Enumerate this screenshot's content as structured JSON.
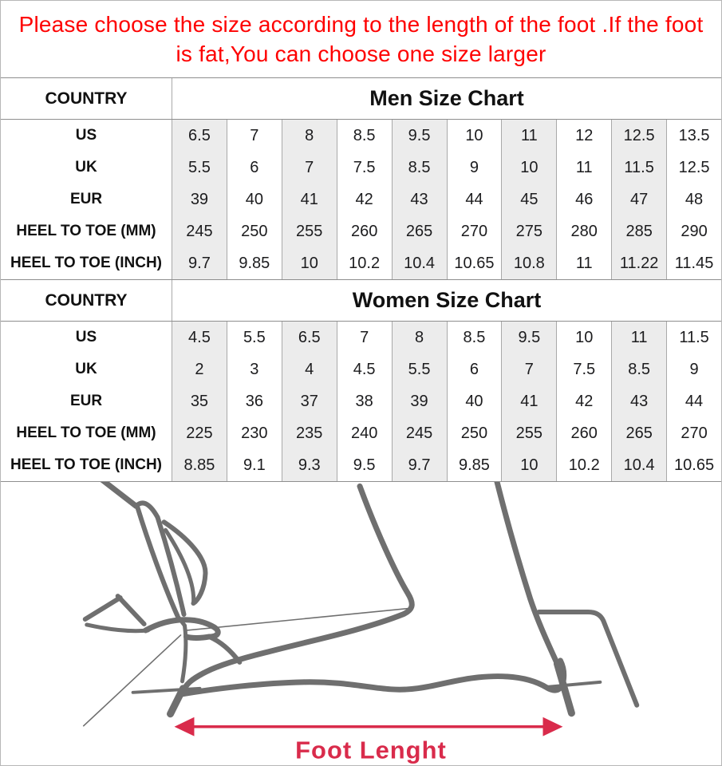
{
  "notice": {
    "line1": "Please choose the size according to the length of the foot .If the foot",
    "line2": "is fat,You can choose one size larger"
  },
  "tables": [
    {
      "country_label": "COUNTRY",
      "title": "Men Size Chart",
      "rows": [
        {
          "label": "US",
          "values": [
            "6.5",
            "7",
            "8",
            "8.5",
            "9.5",
            "10",
            "11",
            "12",
            "12.5",
            "13.5"
          ]
        },
        {
          "label": "UK",
          "values": [
            "5.5",
            "6",
            "7",
            "7.5",
            "8.5",
            "9",
            "10",
            "11",
            "11.5",
            "12.5"
          ]
        },
        {
          "label": "EUR",
          "values": [
            "39",
            "40",
            "41",
            "42",
            "43",
            "44",
            "45",
            "46",
            "47",
            "48"
          ]
        },
        {
          "label": "HEEL TO TOE (MM)",
          "values": [
            "245",
            "250",
            "255",
            "260",
            "265",
            "270",
            "275",
            "280",
            "285",
            "290"
          ]
        },
        {
          "label": "HEEL TO TOE (INCH)",
          "values": [
            "9.7",
            "9.85",
            "10",
            "10.2",
            "10.4",
            "10.65",
            "10.8",
            "11",
            "11.22",
            "11.45"
          ]
        }
      ]
    },
    {
      "country_label": "COUNTRY",
      "title": "Women Size Chart",
      "rows": [
        {
          "label": "US",
          "values": [
            "4.5",
            "5.5",
            "6.5",
            "7",
            "8",
            "8.5",
            "9.5",
            "10",
            "11",
            "11.5"
          ]
        },
        {
          "label": "UK",
          "values": [
            "2",
            "3",
            "4",
            "4.5",
            "5.5",
            "6",
            "7",
            "7.5",
            "8.5",
            "9"
          ]
        },
        {
          "label": "EUR",
          "values": [
            "35",
            "36",
            "37",
            "38",
            "39",
            "40",
            "41",
            "42",
            "43",
            "44"
          ]
        },
        {
          "label": "HEEL TO TOE (MM)",
          "values": [
            "225",
            "230",
            "235",
            "240",
            "245",
            "250",
            "255",
            "260",
            "265",
            "270"
          ]
        },
        {
          "label": "HEEL TO TOE (INCH)",
          "values": [
            "8.85",
            "9.1",
            "9.3",
            "9.5",
            "9.7",
            "9.85",
            "10",
            "10.2",
            "10.4",
            "10.65"
          ]
        }
      ]
    }
  ],
  "figure": {
    "caption": "Foot Lenght"
  },
  "colors": {
    "notice_red": "#fe0000",
    "arrow_crimson": "#d92b4b",
    "drawing_gray": "#6f6f6f",
    "column_shade": "#ececec",
    "grid_line": "#8e8e8e"
  }
}
